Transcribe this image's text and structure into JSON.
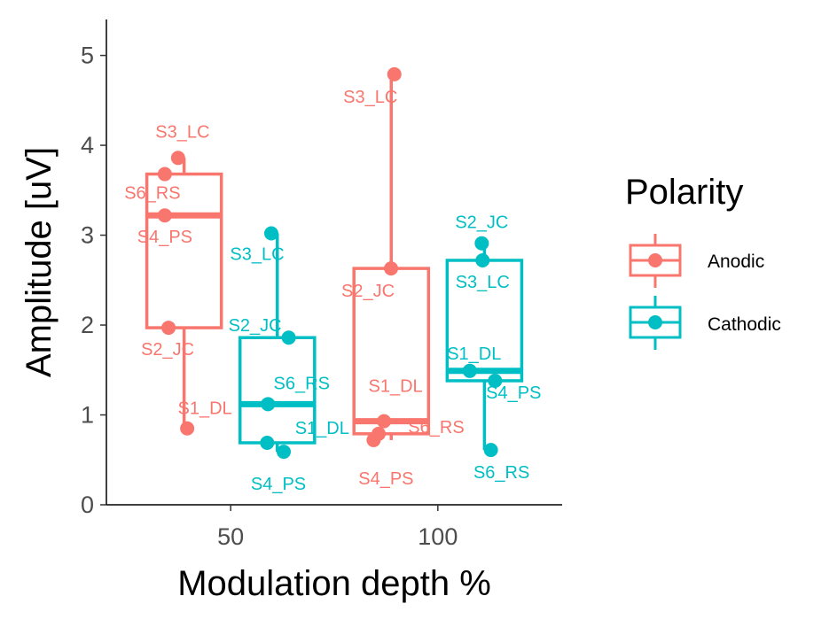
{
  "chart_data": {
    "type": "box",
    "xlabel": "Modulation depth %",
    "ylabel": "Amplitude [uV]",
    "xlim": [
      20,
      130
    ],
    "ylim": [
      0,
      5.4
    ],
    "xticks": [
      50,
      100
    ],
    "yticks": [
      0,
      1,
      2,
      3,
      4,
      5
    ],
    "grid": false,
    "legend": {
      "title": "Polarity",
      "position": "right",
      "entries": [
        "Anodic",
        "Cathodic"
      ]
    },
    "colors": {
      "Anodic": "#F8766D",
      "Cathodic": "#00BFC4"
    },
    "boxes": [
      {
        "polarity": "Anodic",
        "depth": 50,
        "min": 0.85,
        "q1": 1.97,
        "median": 3.22,
        "q3": 3.68,
        "max": 3.86
      },
      {
        "polarity": "Cathodic",
        "depth": 50,
        "min": 0.59,
        "q1": 0.69,
        "median": 1.12,
        "q3": 1.86,
        "max": 3.02
      },
      {
        "polarity": "Anodic",
        "depth": 100,
        "min": 0.72,
        "q1": 0.79,
        "median": 0.93,
        "q3": 2.63,
        "max": 4.79
      },
      {
        "polarity": "Cathodic",
        "depth": 100,
        "min": 0.61,
        "q1": 1.38,
        "median": 1.49,
        "q3": 2.72,
        "max": 2.91
      }
    ],
    "points": [
      {
        "polarity": "Anodic",
        "depth": 50,
        "subject": "S3_LC",
        "x": 37.3,
        "y": 3.86
      },
      {
        "polarity": "Anodic",
        "depth": 50,
        "subject": "S6_RS",
        "x": 34.1,
        "y": 3.68
      },
      {
        "polarity": "Anodic",
        "depth": 50,
        "subject": "S4_PS",
        "x": 34.1,
        "y": 3.22
      },
      {
        "polarity": "Anodic",
        "depth": 50,
        "subject": "S2_JC",
        "x": 35.0,
        "y": 1.97
      },
      {
        "polarity": "Anodic",
        "depth": 50,
        "subject": "S1_DL",
        "x": 39.5,
        "y": 0.85
      },
      {
        "polarity": "Cathodic",
        "depth": 50,
        "subject": "S3_LC",
        "x": 59.8,
        "y": 3.02
      },
      {
        "polarity": "Cathodic",
        "depth": 50,
        "subject": "S2_JC",
        "x": 64.0,
        "y": 1.86
      },
      {
        "polarity": "Cathodic",
        "depth": 50,
        "subject": "S6_RS",
        "x": 59.0,
        "y": 1.12
      },
      {
        "polarity": "Cathodic",
        "depth": 50,
        "subject": "S1_DL",
        "x": 58.8,
        "y": 0.69
      },
      {
        "polarity": "Cathodic",
        "depth": 50,
        "subject": "S4_PS",
        "x": 62.8,
        "y": 0.59
      },
      {
        "polarity": "Anodic",
        "depth": 100,
        "subject": "S3_LC",
        "x": 89.5,
        "y": 4.79
      },
      {
        "polarity": "Anodic",
        "depth": 100,
        "subject": "S2_JC",
        "x": 88.7,
        "y": 2.63
      },
      {
        "polarity": "Anodic",
        "depth": 100,
        "subject": "S1_DL",
        "x": 87.0,
        "y": 0.93
      },
      {
        "polarity": "Anodic",
        "depth": 100,
        "subject": "S6_RS",
        "x": 85.7,
        "y": 0.79
      },
      {
        "polarity": "Anodic",
        "depth": 100,
        "subject": "S4_PS",
        "x": 84.5,
        "y": 0.72
      },
      {
        "polarity": "Cathodic",
        "depth": 100,
        "subject": "S2_JC",
        "x": 110.6,
        "y": 2.91
      },
      {
        "polarity": "Cathodic",
        "depth": 100,
        "subject": "S3_LC",
        "x": 110.8,
        "y": 2.72
      },
      {
        "polarity": "Cathodic",
        "depth": 100,
        "subject": "S1_DL",
        "x": 107.7,
        "y": 1.49
      },
      {
        "polarity": "Cathodic",
        "depth": 100,
        "subject": "S4_PS",
        "x": 113.8,
        "y": 1.38
      },
      {
        "polarity": "Cathodic",
        "depth": 100,
        "subject": "S6_RS",
        "x": 112.8,
        "y": 0.61
      }
    ]
  }
}
